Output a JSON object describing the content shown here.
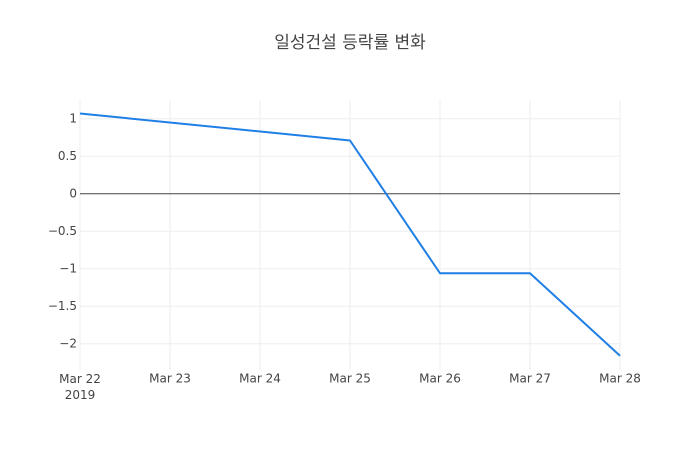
{
  "chart_data": {
    "type": "line",
    "title": "일성건설 등락률 변화",
    "x": [
      "2019-03-22",
      "2019-03-25",
      "2019-03-26",
      "2019-03-27",
      "2019-03-28"
    ],
    "series": [
      {
        "color": "#1f7fe5",
        "values": [
          1.07,
          0.71,
          -1.06,
          -1.06,
          -2.16
        ]
      }
    ],
    "xlim": [
      "2019-03-22",
      "2019-03-28"
    ],
    "xticks": [
      {
        "value": "2019-03-22",
        "label": "Mar 22\n2019"
      },
      {
        "value": "2019-03-23",
        "label": "Mar 23"
      },
      {
        "value": "2019-03-24",
        "label": "Mar 24"
      },
      {
        "value": "2019-03-25",
        "label": "Mar 25"
      },
      {
        "value": "2019-03-26",
        "label": "Mar 26"
      },
      {
        "value": "2019-03-27",
        "label": "Mar 27"
      },
      {
        "value": "2019-03-28",
        "label": "Mar 28"
      }
    ],
    "ylim": [
      -2.35,
      1.25
    ],
    "yticks": [
      1,
      0.5,
      0,
      {
        "value": -0.5,
        "label": "−0.5"
      },
      {
        "value": -1,
        "label": "−1"
      },
      {
        "value": -1.5,
        "label": "−1.5"
      },
      {
        "value": -2,
        "label": "−2"
      }
    ],
    "grid": true,
    "zeroline": true
  }
}
